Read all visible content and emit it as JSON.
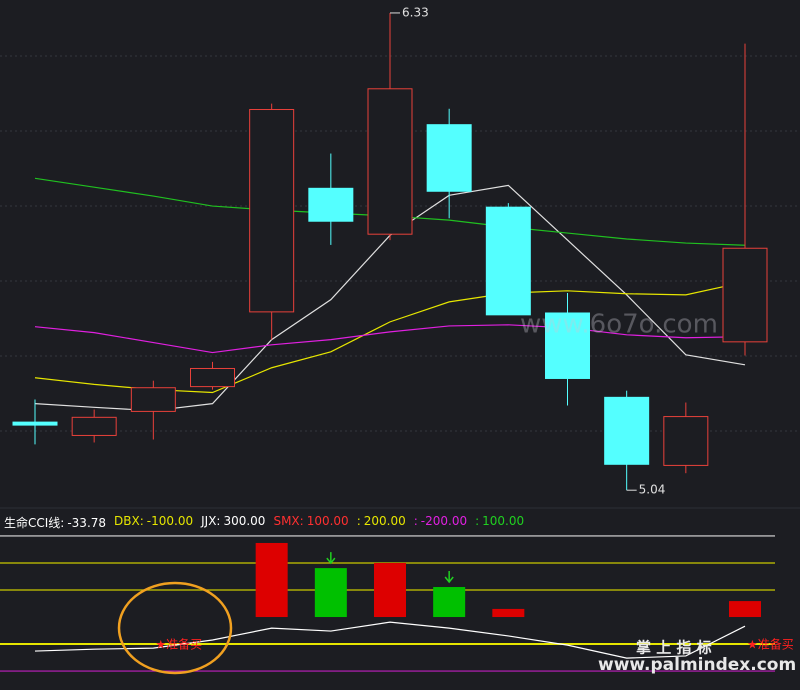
{
  "chart_data": [
    {
      "type": "candlestick",
      "open": [
        5.22,
        5.188,
        5.253,
        5.32,
        5.522,
        5.856,
        5.732,
        6.028,
        5.805,
        5.519,
        5.291,
        5.107,
        5.441
      ],
      "high": [
        5.285,
        5.258,
        5.336,
        5.387,
        6.085,
        5.95,
        6.33,
        6.071,
        5.816,
        5.573,
        5.309,
        5.277,
        6.247
      ],
      "low": [
        5.164,
        5.169,
        5.177,
        5.312,
        5.447,
        5.703,
        5.716,
        5.775,
        5.514,
        5.269,
        5.04,
        5.086,
        5.404
      ],
      "close": [
        5.22,
        5.237,
        5.317,
        5.369,
        6.069,
        5.767,
        6.125,
        5.848,
        5.514,
        5.342,
        5.11,
        5.239,
        5.694
      ],
      "up_color": "#e8413a",
      "down_color": "#54ffff",
      "series": [
        {
          "color": "#e0e0e0",
          "values": [
            5.274,
            5.264,
            5.255,
            5.274,
            5.447,
            5.555,
            5.729,
            5.837,
            5.864,
            5.716,
            5.568,
            5.406,
            5.379
          ]
        },
        {
          "color": "#e6e600",
          "values": [
            5.344,
            5.326,
            5.312,
            5.304,
            5.371,
            5.414,
            5.495,
            5.549,
            5.573,
            5.579,
            5.571,
            5.568,
            5.603
          ]
        },
        {
          "color": "#e020e0",
          "values": [
            5.482,
            5.466,
            5.439,
            5.412,
            5.433,
            5.447,
            5.468,
            5.484,
            5.487,
            5.479,
            5.46,
            5.452,
            5.455
          ]
        },
        {
          "color": "#20c020",
          "values": [
            5.883,
            5.859,
            5.835,
            5.808,
            5.797,
            5.789,
            5.781,
            5.77,
            5.751,
            5.735,
            5.719,
            5.708,
            5.702
          ]
        }
      ],
      "annotations": [
        {
          "value": 6.33,
          "label": "6.33"
        },
        {
          "value": 5.04,
          "label": "5.04"
        }
      ],
      "ylim": [
        5.0,
        6.365
      ]
    },
    {
      "type": "indicator",
      "items": [
        {
          "name": "生命CCI线:",
          "value": -33.78,
          "color": "#ffffff"
        },
        {
          "name": "DBX:",
          "value": -100,
          "label": "-100.00",
          "color": "#e6e600",
          "line": "#e6e600"
        },
        {
          "name": "JJX:",
          "value": 300,
          "label": "300.00",
          "color": "#ffffff",
          "line": "#e0e0e0"
        },
        {
          "name": "SMX:",
          "value": 100,
          "label": "100.00",
          "color": "#ff3030",
          "line": "#c8c800"
        },
        {
          "name": ":",
          "value": 200,
          "label": "200.00",
          "color": "#e6e600",
          "line": "#c8c800"
        },
        {
          "name": ":",
          "value": -200,
          "label": "-200.00",
          "color": "#e020e0",
          "line": "#c020c0"
        },
        {
          "name": ":",
          "value": 100,
          "label": "100.00",
          "color": "#20d020"
        }
      ],
      "line": {
        "color": "#ffffff",
        "values": [
          -126,
          -119,
          -115,
          -85,
          -41,
          -52,
          -19,
          -41,
          -70,
          -104,
          -152,
          -144,
          -33.78
        ]
      },
      "bars": [
        null,
        null,
        null,
        null,
        274,
        181,
        200,
        111,
        30,
        null,
        null,
        null,
        59
      ],
      "bar_colors": [
        null,
        null,
        null,
        null,
        "#dd0000",
        "#00c000",
        "#dd0000",
        "#00c000",
        "#dd0000",
        null,
        null,
        null,
        "#dd0000"
      ],
      "signals": [
        null,
        null,
        "★准备买",
        null,
        null,
        null,
        null,
        null,
        null,
        null,
        null,
        null,
        "★准备买"
      ],
      "signal_color": "#ff2020",
      "ylim": [
        -270,
        322
      ]
    }
  ],
  "watermarks": [
    "www.6o7o.com",
    "掌 上 指 标",
    "www.palmindex.com"
  ]
}
